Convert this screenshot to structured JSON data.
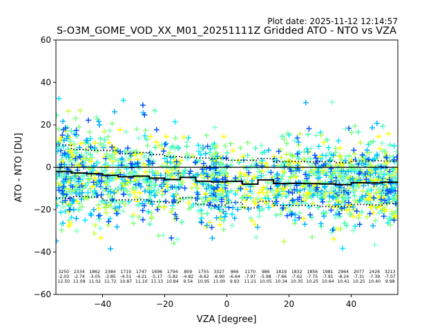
{
  "chart_data": {
    "type": "scatter",
    "plot_date": "Plot date: 2025-11-12 12:14:57",
    "title": "S-O3M_GOME_VOD_XX_M01_20251111Z Gridded ATO - NTO vs VZA",
    "xlabel": "VZA [degree]",
    "ylabel": "ATO - NTO [DU]",
    "xlim": [
      -55,
      55
    ],
    "ylim": [
      -60,
      60
    ],
    "xticks": [
      -40,
      -20,
      0,
      20,
      40
    ],
    "yticks": [
      -60,
      -40,
      -20,
      0,
      20,
      40,
      60
    ],
    "marker": "+",
    "scatter_colors": [
      "#00e5ff",
      "#40ffb0",
      "#7fff7f",
      "#c0ff40",
      "#ffff00",
      "#00b0ff",
      "#0050ff",
      "#80ffd0"
    ],
    "reference_line": 0,
    "bins": {
      "vza_centers": [
        -52.5,
        -47.5,
        -42.5,
        -37.5,
        -32.5,
        -27.5,
        -22.5,
        -17.5,
        -12.5,
        -7.5,
        -2.5,
        2.5,
        7.5,
        12.5,
        17.5,
        22.5,
        27.5,
        32.5,
        37.5,
        42.5,
        47.5,
        52.5
      ],
      "count": [
        "3250",
        "2334",
        "1862",
        "2384",
        "1719",
        "1747",
        "1696",
        "1794",
        "809",
        "1755",
        "3327",
        "866",
        "1170",
        "986",
        "1819",
        "1832",
        "1856",
        "1981",
        "2964",
        "2077",
        "2426",
        "3213"
      ],
      "mean": [
        "-2.03",
        "-2.74",
        "-3.05",
        "-3.85",
        "-4.51",
        "-4.21",
        "-5.17",
        "-5.82",
        "-4.82",
        "-6.62",
        "-6.90",
        "-6.64",
        "-7.97",
        "-5.98",
        "-7.66",
        "-7.62",
        "-7.75",
        "-7.91",
        "-8.24",
        "-7.31",
        "-7.39",
        "-7.07"
      ],
      "std": [
        "12.50",
        "11.09",
        "11.02",
        "11.72",
        "10.87",
        "11.10",
        "11.13",
        "10.84",
        "9.54",
        "10.95",
        "11.00",
        "9.93",
        "11.21",
        "10.05",
        "10.34",
        "10.35",
        "10.25",
        "10.64",
        "10.41",
        "10.25",
        "10.40",
        "9.98"
      ]
    }
  }
}
